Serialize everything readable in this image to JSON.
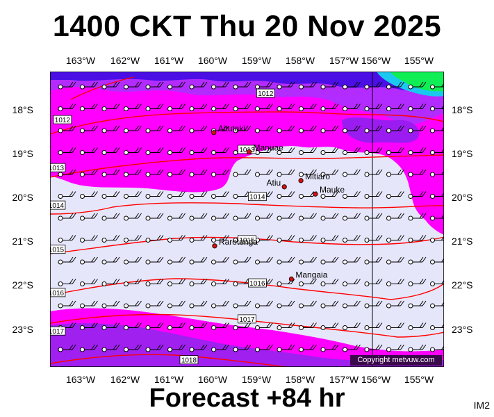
{
  "header": {
    "title": "1400 CKT Thu 20 Nov 2025"
  },
  "footer": {
    "forecast": "Forecast +84 hr",
    "image_code": "IM2"
  },
  "copyright": "Copyright metvuw.com",
  "longitude_labels": [
    "163°W",
    "162°W",
    "161°W",
    "160°W",
    "159°W",
    "158°W",
    "157°W",
    "156°W",
    "155°W"
  ],
  "latitude_labels": [
    "18°S",
    "19°S",
    "20°S",
    "21°S",
    "22°S",
    "23°S"
  ],
  "map_extent": {
    "lon_min": -163.75,
    "lon_max": -154.25,
    "lat_min": -23.75,
    "lat_max": -17.6
  },
  "colors": {
    "background_band": "#e6e6fa",
    "magenta": "#ff00ff",
    "violet": "#aa22ff",
    "blue": "#4b0fe6",
    "green": "#10ee55",
    "isobar": "#ff0000",
    "island": "#d41010"
  },
  "islands": [
    {
      "name": "Aitutaki",
      "lon": -159.8,
      "lat": -18.87
    },
    {
      "name": "Manuae",
      "lon": -158.95,
      "lat": -19.27
    },
    {
      "name": "Mitiaro",
      "lon": -157.7,
      "lat": -19.87
    },
    {
      "name": "Atiu",
      "lon": -158.1,
      "lat": -20.0
    },
    {
      "name": "Mauke",
      "lon": -157.35,
      "lat": -20.15
    },
    {
      "name": "Rarotonga",
      "lon": -159.78,
      "lat": -21.23
    },
    {
      "name": "Mangaia",
      "lon": -157.93,
      "lat": -21.92
    }
  ],
  "isobars": [
    {
      "label": "1012",
      "lat_label": -18.05,
      "lon_label": -158.55
    },
    {
      "label": "1012",
      "lat_label": -18.6,
      "lon_label": -163.45
    },
    {
      "label": "1013",
      "lat_label": -19.22,
      "lon_label": -159.0
    },
    {
      "label": "1013",
      "lat_label": -19.6,
      "lon_label": -163.6
    },
    {
      "label": "1014",
      "lat_label": -20.2,
      "lon_label": -158.75
    },
    {
      "label": "1014",
      "lat_label": -20.38,
      "lon_label": -163.6
    },
    {
      "label": "1015",
      "lat_label": -21.1,
      "lon_label": -159.0
    },
    {
      "label": "1015",
      "lat_label": -21.3,
      "lon_label": -163.6
    },
    {
      "label": "1016",
      "lat_label": -22.0,
      "lon_label": -158.75
    },
    {
      "label": "1016",
      "lat_label": -22.2,
      "lon_label": -163.6
    },
    {
      "label": "1017",
      "lat_label": -22.75,
      "lon_label": -159.0
    },
    {
      "label": "1017",
      "lat_label": -23.0,
      "lon_label": -163.6
    },
    {
      "label": "1018",
      "lat_label": -23.6,
      "lon_label": -160.4
    }
  ]
}
